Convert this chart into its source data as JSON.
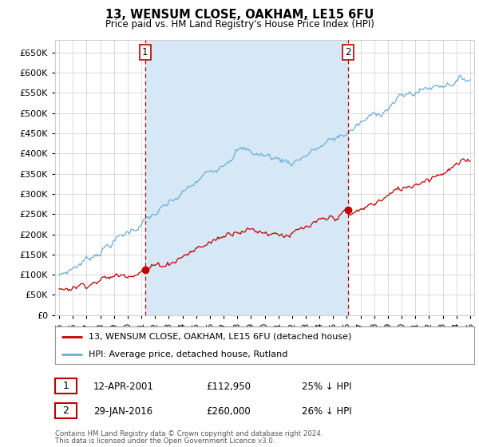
{
  "title": "13, WENSUM CLOSE, OAKHAM, LE15 6FU",
  "subtitle": "Price paid vs. HM Land Registry's House Price Index (HPI)",
  "legend_entries": [
    "13, WENSUM CLOSE, OAKHAM, LE15 6FU (detached house)",
    "HPI: Average price, detached house, Rutland"
  ],
  "sale1_label": "1",
  "sale1_date": "12-APR-2001",
  "sale1_price": "£112,950",
  "sale1_hpi": "25% ↓ HPI",
  "sale2_label": "2",
  "sale2_date": "29-JAN-2016",
  "sale2_price": "£260,000",
  "sale2_hpi": "26% ↓ HPI",
  "footer1": "Contains HM Land Registry data © Crown copyright and database right 2024.",
  "footer2": "This data is licensed under the Open Government Licence v3.0.",
  "hpi_color": "#6aaed6",
  "hpi_fill_color": "#d6e8f5",
  "price_color": "#C00000",
  "grid_color": "#CCCCCC",
  "bg_color": "#FFFFFF",
  "plot_bg_color": "#FFFFFF",
  "ylim_min": 0,
  "ylim_max": 680000,
  "yticks": [
    0,
    50000,
    100000,
    150000,
    200000,
    250000,
    300000,
    350000,
    400000,
    450000,
    500000,
    550000,
    600000,
    650000
  ],
  "sale1_x": 2001.28,
  "sale1_y": 112950,
  "sale2_x": 2016.08,
  "sale2_y": 260000,
  "vline1_x": 2001.28,
  "vline2_x": 2016.08,
  "xlim_min": 1994.7,
  "xlim_max": 2025.3
}
